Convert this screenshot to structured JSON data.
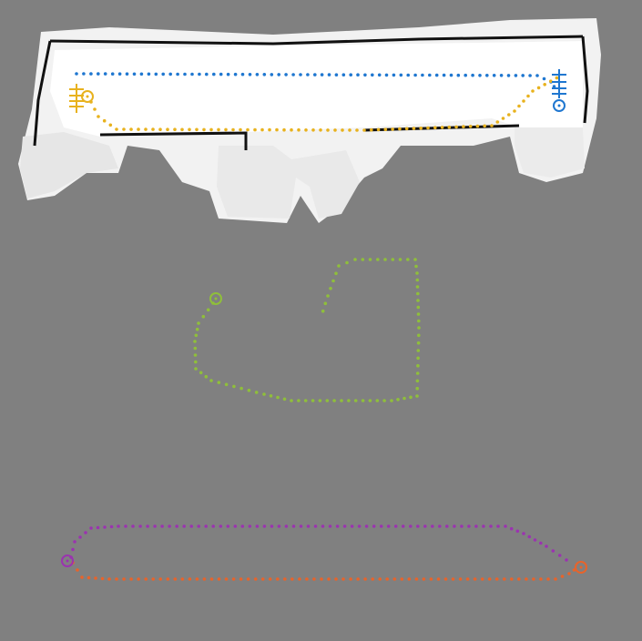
{
  "map": {
    "background_color": "#808080",
    "occupancy": {
      "free_color": "#ffffff",
      "wall_color": "#111111",
      "scan_color": "#d9d9d9"
    },
    "trajectories": [
      {
        "name": "blue-path",
        "color": "#1f77d0",
        "start_marker": "cross-marker",
        "end_marker": "circle-target-marker"
      },
      {
        "name": "yellow-path",
        "color": "#e8b21e",
        "start_marker": "circle-target-marker",
        "end_marker": "cross-marker"
      },
      {
        "name": "green-path",
        "color": "#8fbf3a",
        "start_marker": "circle-target-marker",
        "end_marker": "none"
      },
      {
        "name": "purple-path",
        "color": "#9b33b0",
        "start_marker": "circle-target-marker",
        "end_marker": "none"
      },
      {
        "name": "orange-path",
        "color": "#e8632a",
        "start_marker": "circle-target-marker",
        "end_marker": "none"
      }
    ]
  }
}
